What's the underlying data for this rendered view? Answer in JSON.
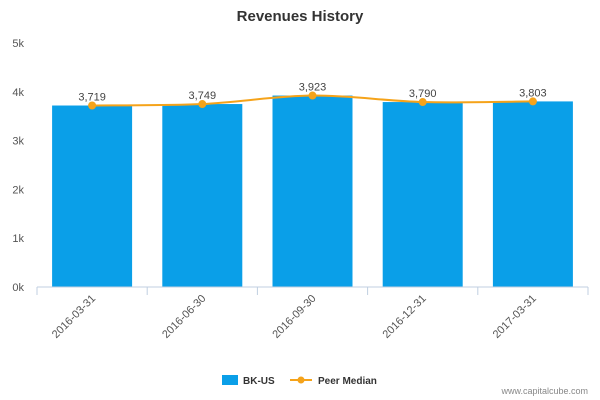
{
  "chart_data": {
    "type": "bar",
    "title": "Revenues History",
    "xlabel": "",
    "ylabel": "",
    "categories": [
      "2016-03-31",
      "2016-06-30",
      "2016-09-30",
      "2016-12-31",
      "2017-03-31"
    ],
    "ylim": [
      0,
      5000
    ],
    "yticks": [
      {
        "value": 0,
        "label": "0k"
      },
      {
        "value": 1000,
        "label": "1k"
      },
      {
        "value": 2000,
        "label": "2k"
      },
      {
        "value": 3000,
        "label": "3k"
      },
      {
        "value": 4000,
        "label": "4k"
      },
      {
        "value": 5000,
        "label": "5k"
      }
    ],
    "series": [
      {
        "name": "BK-US",
        "type": "bar",
        "color": "#0a9fe8",
        "values": [
          3719,
          3749,
          3923,
          3790,
          3803
        ]
      },
      {
        "name": "Peer Median",
        "type": "line",
        "color": "#f5a31a",
        "values": [
          3719,
          3749,
          3923,
          3790,
          3803
        ],
        "labels": [
          "3,719",
          "3,749",
          "3,923",
          "3,790",
          "3,803"
        ]
      }
    ],
    "legend_position": "bottom-center",
    "grid": false
  },
  "watermark": "www.capitalcube.com"
}
